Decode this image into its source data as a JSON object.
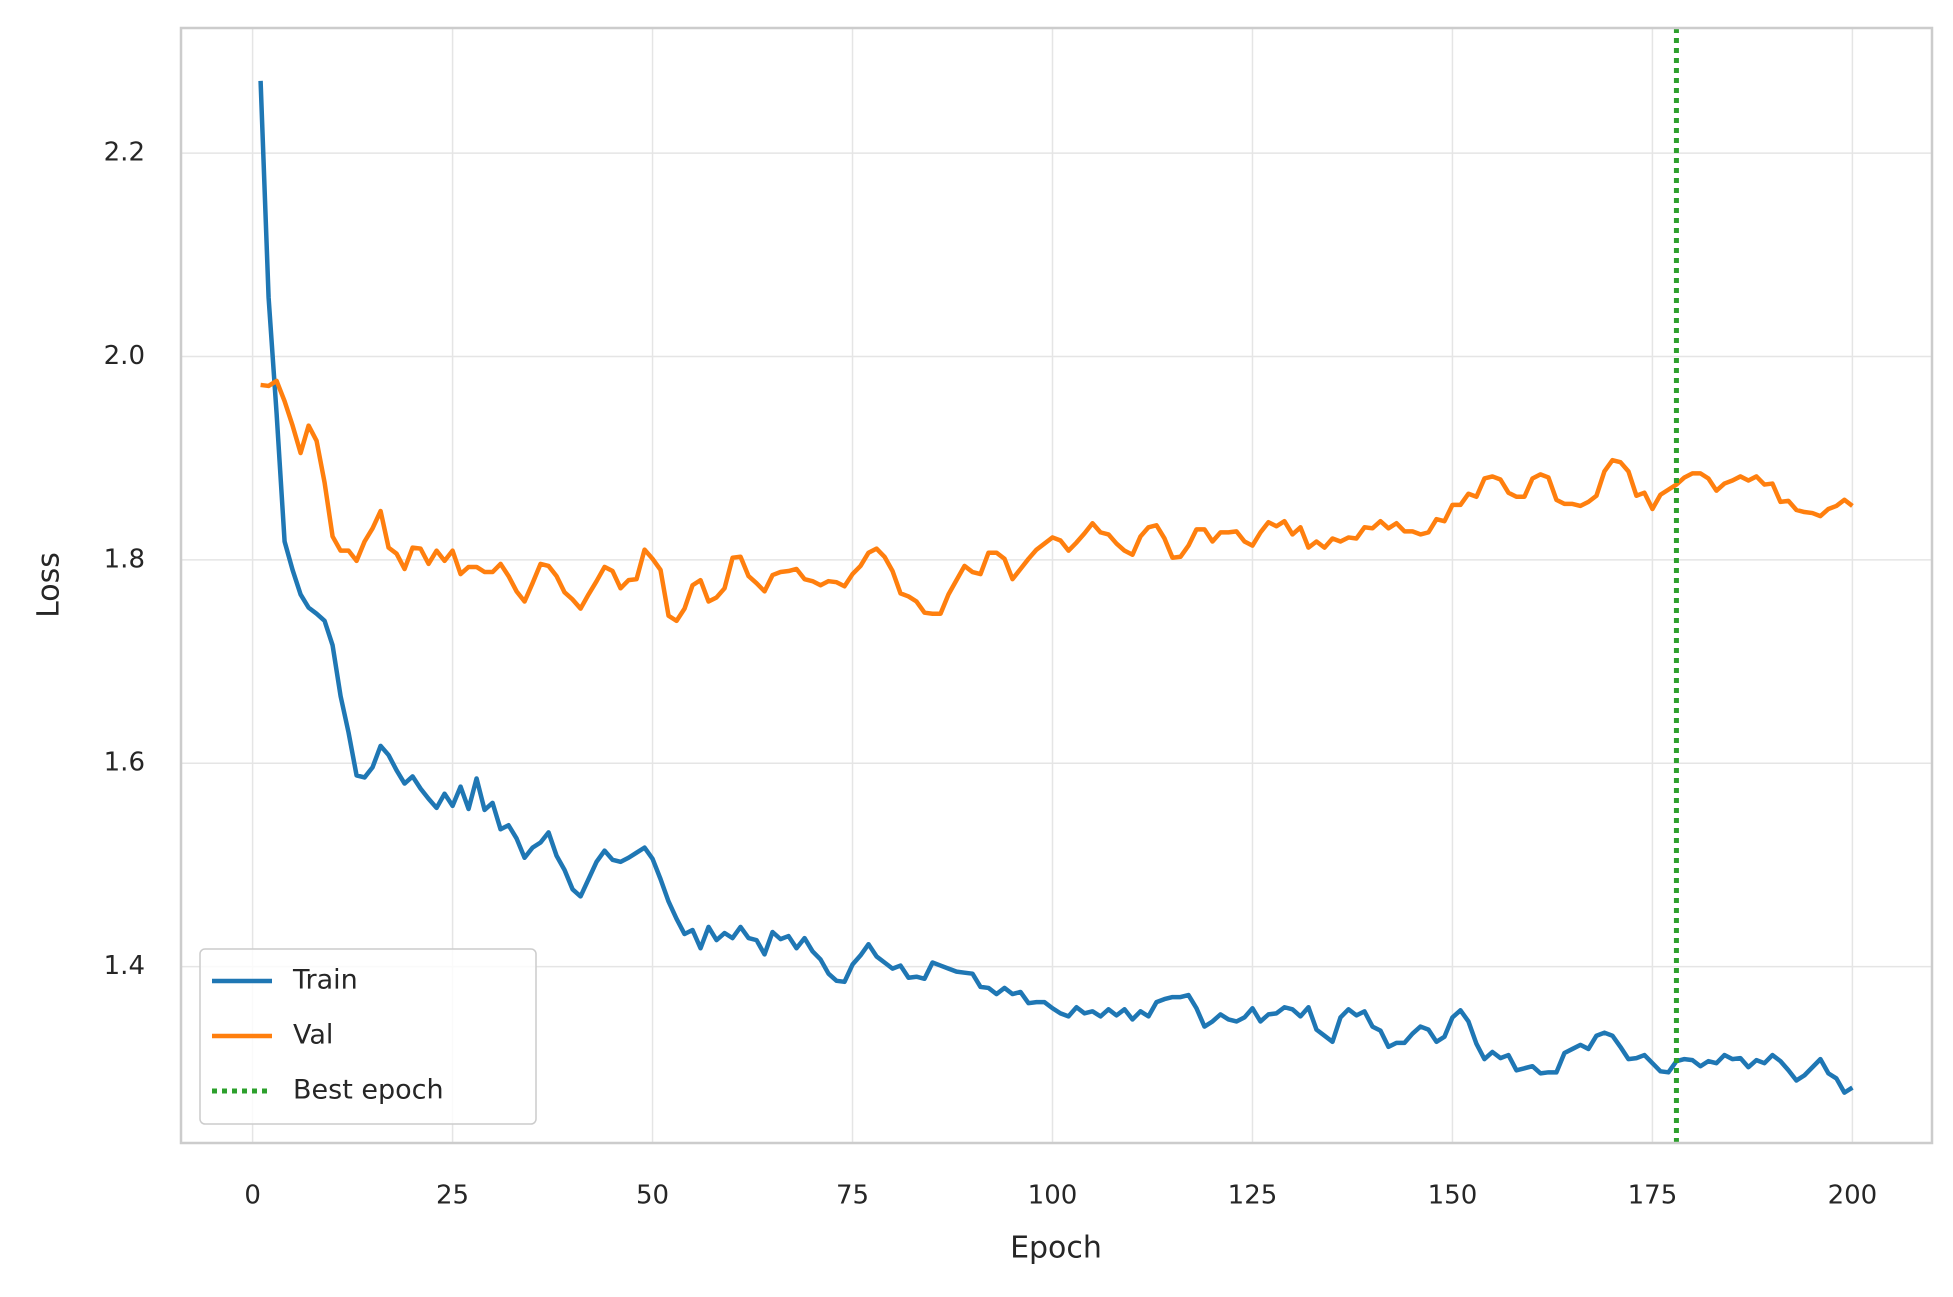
{
  "chart_data": {
    "type": "line",
    "xlabel": "Epoch",
    "ylabel": "Loss",
    "xlim": [
      -8.95,
      209.95
    ],
    "ylim": [
      1.2265,
      2.323
    ],
    "xticks": [
      0,
      25,
      50,
      75,
      100,
      125,
      150,
      175,
      200
    ],
    "yticks": [
      1.4,
      1.6,
      1.8,
      {
        "value": 2,
        "label": "2.0"
      },
      2.2
    ],
    "grid": true,
    "legend": "lower left",
    "x": [
      1,
      2,
      3,
      4,
      5,
      6,
      7,
      8,
      9,
      10,
      11,
      12,
      13,
      14,
      15,
      16,
      17,
      18,
      19,
      20,
      21,
      22,
      23,
      24,
      25,
      26,
      27,
      28,
      29,
      30,
      31,
      32,
      33,
      34,
      35,
      36,
      37,
      38,
      39,
      40,
      41,
      42,
      43,
      44,
      45,
      46,
      47,
      48,
      49,
      50,
      51,
      52,
      53,
      54,
      55,
      56,
      57,
      58,
      59,
      60,
      61,
      62,
      63,
      64,
      65,
      66,
      67,
      68,
      69,
      70,
      71,
      72,
      73,
      74,
      75,
      76,
      77,
      78,
      79,
      80,
      81,
      82,
      83,
      84,
      85,
      86,
      87,
      88,
      89,
      90,
      91,
      92,
      93,
      94,
      95,
      96,
      97,
      98,
      99,
      100,
      101,
      102,
      103,
      104,
      105,
      106,
      107,
      108,
      109,
      110,
      111,
      112,
      113,
      114,
      115,
      116,
      117,
      118,
      119,
      120,
      121,
      122,
      123,
      124,
      125,
      126,
      127,
      128,
      129,
      130,
      131,
      132,
      133,
      134,
      135,
      136,
      137,
      138,
      139,
      140,
      141,
      142,
      143,
      144,
      145,
      146,
      147,
      148,
      149,
      150,
      151,
      152,
      153,
      154,
      155,
      156,
      157,
      158,
      159,
      160,
      161,
      162,
      163,
      164,
      165,
      166,
      167,
      168,
      169,
      170,
      171,
      172,
      173,
      174,
      175,
      176,
      177,
      178,
      179,
      180,
      181,
      182,
      183,
      184,
      185,
      186,
      187,
      188,
      189,
      190,
      191,
      192,
      193,
      194,
      195,
      196,
      197,
      198,
      199,
      200
    ],
    "series": [
      {
        "name": "Train",
        "color": "#1f77b4",
        "values": [
          2.271,
          2.058,
          1.944,
          1.818,
          1.79,
          1.766,
          1.753,
          1.747,
          1.74,
          1.716,
          1.666,
          1.63,
          1.588,
          1.586,
          1.596,
          1.617,
          1.608,
          1.593,
          1.58,
          1.587,
          1.575,
          1.565,
          1.556,
          1.57,
          1.558,
          1.577,
          1.555,
          1.585,
          1.554,
          1.561,
          1.535,
          1.539,
          1.526,
          1.507,
          1.517,
          1.522,
          1.532,
          1.509,
          1.495,
          1.476,
          1.469,
          1.486,
          1.503,
          1.514,
          1.505,
          1.503,
          1.507,
          1.512,
          1.517,
          1.506,
          1.486,
          1.464,
          1.447,
          1.432,
          1.436,
          1.418,
          1.439,
          1.426,
          1.433,
          1.428,
          1.439,
          1.428,
          1.426,
          1.412,
          1.434,
          1.427,
          1.43,
          1.418,
          1.428,
          1.415,
          1.407,
          1.393,
          1.386,
          1.385,
          1.402,
          1.411,
          1.422,
          1.41,
          1.404,
          1.398,
          1.401,
          1.389,
          1.39,
          1.388,
          1.404,
          1.401,
          1.398,
          1.395,
          1.394,
          1.393,
          1.38,
          1.379,
          1.373,
          1.379,
          1.373,
          1.375,
          1.364,
          1.365,
          1.365,
          1.359,
          1.354,
          1.351,
          1.36,
          1.354,
          1.356,
          1.351,
          1.358,
          1.352,
          1.358,
          1.348,
          1.356,
          1.351,
          1.365,
          1.368,
          1.37,
          1.37,
          1.372,
          1.359,
          1.341,
          1.346,
          1.353,
          1.348,
          1.346,
          1.35,
          1.359,
          1.346,
          1.353,
          1.354,
          1.36,
          1.358,
          1.351,
          1.36,
          1.338,
          1.332,
          1.326,
          1.35,
          1.358,
          1.352,
          1.356,
          1.341,
          1.337,
          1.321,
          1.325,
          1.325,
          1.334,
          1.341,
          1.338,
          1.326,
          1.331,
          1.35,
          1.357,
          1.346,
          1.324,
          1.309,
          1.316,
          1.31,
          1.313,
          1.298,
          1.3,
          1.302,
          1.295,
          1.296,
          1.296,
          1.315,
          1.319,
          1.323,
          1.319,
          1.332,
          1.335,
          1.332,
          1.321,
          1.309,
          1.31,
          1.313,
          1.305,
          1.297,
          1.296,
          1.307,
          1.309,
          1.308,
          1.302,
          1.307,
          1.305,
          1.313,
          1.309,
          1.31,
          1.301,
          1.308,
          1.305,
          1.313,
          1.307,
          1.298,
          1.288,
          1.293,
          1.301,
          1.309,
          1.295,
          1.29,
          1.276,
          1.281
        ]
      },
      {
        "name": "Val",
        "color": "#ff7f0e",
        "values": [
          1.972,
          1.971,
          1.976,
          1.956,
          1.932,
          1.905,
          1.932,
          1.917,
          1.876,
          1.823,
          1.809,
          1.809,
          1.799,
          1.818,
          1.831,
          1.848,
          1.812,
          1.806,
          1.791,
          1.812,
          1.811,
          1.796,
          1.809,
          1.799,
          1.809,
          1.786,
          1.793,
          1.793,
          1.788,
          1.788,
          1.796,
          1.784,
          1.769,
          1.759,
          1.777,
          1.796,
          1.794,
          1.784,
          1.768,
          1.761,
          1.752,
          1.766,
          1.779,
          1.793,
          1.789,
          1.772,
          1.78,
          1.781,
          1.81,
          1.801,
          1.79,
          1.745,
          1.74,
          1.752,
          1.775,
          1.78,
          1.759,
          1.763,
          1.772,
          1.802,
          1.803,
          1.784,
          1.777,
          1.769,
          1.785,
          1.788,
          1.789,
          1.791,
          1.781,
          1.779,
          1.775,
          1.779,
          1.778,
          1.774,
          1.786,
          1.794,
          1.807,
          1.811,
          1.803,
          1.789,
          1.767,
          1.764,
          1.759,
          1.748,
          1.747,
          1.747,
          1.766,
          1.78,
          1.794,
          1.788,
          1.786,
          1.807,
          1.807,
          1.801,
          1.781,
          1.791,
          1.801,
          1.81,
          1.816,
          1.822,
          1.819,
          1.809,
          1.817,
          1.826,
          1.836,
          1.827,
          1.825,
          1.816,
          1.809,
          1.805,
          1.823,
          1.832,
          1.834,
          1.821,
          1.802,
          1.803,
          1.814,
          1.83,
          1.83,
          1.818,
          1.827,
          1.827,
          1.828,
          1.818,
          1.814,
          1.827,
          1.837,
          1.833,
          1.838,
          1.825,
          1.832,
          1.812,
          1.818,
          1.812,
          1.821,
          1.818,
          1.822,
          1.821,
          1.832,
          1.831,
          1.838,
          1.831,
          1.836,
          1.828,
          1.828,
          1.825,
          1.827,
          1.84,
          1.838,
          1.854,
          1.854,
          1.865,
          1.862,
          1.88,
          1.882,
          1.879,
          1.866,
          1.862,
          1.862,
          1.88,
          1.884,
          1.881,
          1.859,
          1.855,
          1.855,
          1.853,
          1.857,
          1.863,
          1.887,
          1.898,
          1.896,
          1.887,
          1.863,
          1.866,
          1.85,
          1.864,
          1.869,
          1.874,
          1.881,
          1.885,
          1.885,
          1.88,
          1.868,
          1.875,
          1.878,
          1.882,
          1.878,
          1.882,
          1.874,
          1.875,
          1.857,
          1.858,
          1.849,
          1.847,
          1.846,
          1.843,
          1.85,
          1.853,
          1.859,
          1.853
        ]
      }
    ],
    "vlines": [
      {
        "name": "Best epoch",
        "x": 178,
        "color": "#2ca02c"
      }
    ]
  }
}
